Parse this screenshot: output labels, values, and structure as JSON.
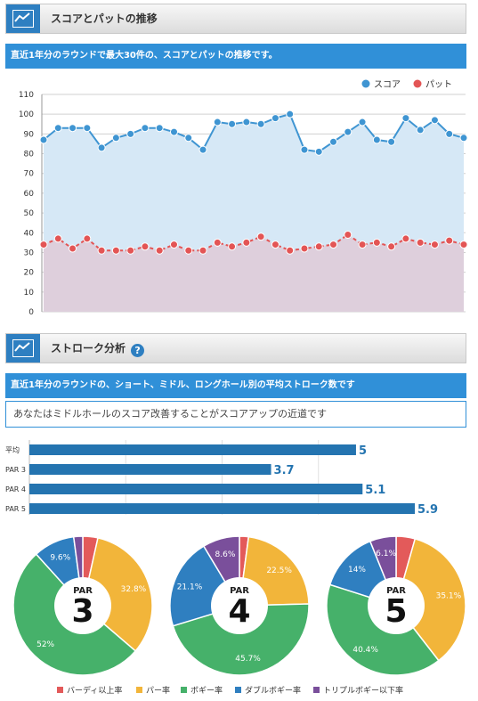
{
  "section1": {
    "title": "スコアとパットの推移",
    "description": "直近1年分のラウンドで最大30件の、スコアとパットの推移です。"
  },
  "section2": {
    "title": "ストローク分析",
    "help": "?",
    "description": "直近1年分のラウンドの、ショート、ミドル、ロングホール別の平均ストローク数です",
    "advice": "あなたはミドルホールのスコア改善することがスコアアップの近道です"
  },
  "colors": {
    "score": "#3f95d2",
    "putt": "#e35555",
    "birdie": "#e35a5a",
    "par": "#f2b53a",
    "bogey": "#46b16a",
    "double": "#2f7fc0",
    "triple": "#7a4f9b",
    "bar": "#2474b0",
    "header_blue": "#3090d8"
  },
  "chart_data": [
    {
      "type": "line",
      "ylim": [
        0,
        110
      ],
      "yticks": [
        0,
        10,
        20,
        30,
        40,
        50,
        60,
        70,
        80,
        90,
        100,
        110
      ],
      "grid": true,
      "legend": "top-right",
      "series": [
        {
          "name": "スコア",
          "values": [
            87,
            93,
            93,
            93,
            83,
            88,
            90,
            93,
            93,
            91,
            88,
            82,
            96,
            95,
            96,
            95,
            98,
            100,
            82,
            81,
            86,
            91,
            96,
            87,
            86,
            98,
            92,
            97,
            90,
            88
          ]
        },
        {
          "name": "パット",
          "values": [
            34,
            37,
            32,
            37,
            31,
            31,
            31,
            33,
            31,
            34,
            31,
            31,
            35,
            33,
            35,
            38,
            34,
            31,
            32,
            33,
            34,
            39,
            34,
            35,
            33,
            37,
            35,
            34,
            36,
            34
          ]
        }
      ]
    },
    {
      "type": "bar",
      "orientation": "horizontal",
      "categories": [
        "平均",
        "PAR 3",
        "PAR 4",
        "PAR 5"
      ],
      "values": [
        5,
        3.7,
        5.1,
        5.9
      ],
      "labels": [
        "5",
        "3.7",
        "5.1",
        "5.9"
      ],
      "xlim": [
        0,
        5.9
      ]
    },
    {
      "type": "pie",
      "title": "PAR",
      "center_value": "3",
      "slices": [
        {
          "category": "バーディ以上率",
          "value": 3.5,
          "label": ""
        },
        {
          "category": "パー率",
          "value": 32.8,
          "label": "32.8%"
        },
        {
          "category": "ボギー率",
          "value": 52,
          "label": "52%"
        },
        {
          "category": "ダブルボギー率",
          "value": 9.6,
          "label": "9.6%"
        },
        {
          "category": "トリプルボギー以下率",
          "value": 2.1,
          "label": ""
        }
      ]
    },
    {
      "type": "pie",
      "title": "PAR",
      "center_value": "4",
      "slices": [
        {
          "category": "バーディ以上率",
          "value": 2.1,
          "label": ""
        },
        {
          "category": "パー率",
          "value": 22.5,
          "label": "22.5%"
        },
        {
          "category": "ボギー率",
          "value": 45.7,
          "label": "45.7%"
        },
        {
          "category": "ダブルボギー率",
          "value": 21.1,
          "label": "21.1%"
        },
        {
          "category": "トリプルボギー以下率",
          "value": 8.6,
          "label": "8.6%"
        }
      ]
    },
    {
      "type": "pie",
      "title": "PAR",
      "center_value": "5",
      "slices": [
        {
          "category": "バーディ以上率",
          "value": 4.4,
          "label": ""
        },
        {
          "category": "パー率",
          "value": 35.1,
          "label": "35.1%"
        },
        {
          "category": "ボギー率",
          "value": 40.4,
          "label": "40.4%"
        },
        {
          "category": "ダブルボギー率",
          "value": 14,
          "label": "14%"
        },
        {
          "category": "トリプルボギー以下率",
          "value": 6.1,
          "label": "6.1%"
        }
      ]
    }
  ],
  "pie_legend": [
    "バーディ以上率",
    "パー率",
    "ボギー率",
    "ダブルボギー率",
    "トリプルボギー以下率"
  ]
}
